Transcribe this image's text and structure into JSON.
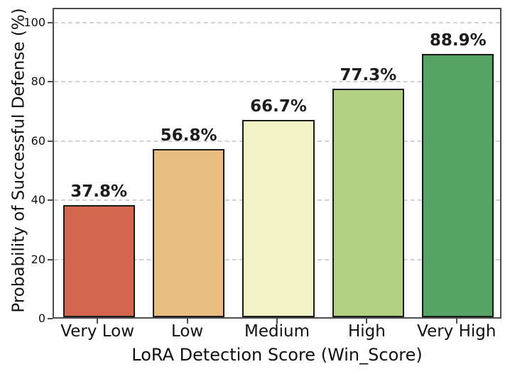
{
  "figure": {
    "background": "#ffffff",
    "spine_color": "#4d4d4d",
    "gridline_color": "#d2d2d2",
    "text_color": "#111111"
  },
  "chart_data": {
    "type": "bar",
    "title": "",
    "categories": [
      "Very Low",
      "Low",
      "Medium",
      "High",
      "Very High"
    ],
    "values": [
      37.8,
      56.8,
      66.7,
      77.3,
      88.9
    ],
    "value_labels": [
      "37.8%",
      "56.8%",
      "66.7%",
      "77.3%",
      "88.9%"
    ],
    "bar_colors": [
      "#d2664e",
      "#e9bd7f",
      "#f2f4c6",
      "#b1d282",
      "#57a365"
    ],
    "bar_edge_color": "#1a1a1a",
    "xlabel": "LoRA Detection Score (Win_Score)",
    "ylabel": "Probability of Successful Defense (%)",
    "ylim": [
      0,
      105
    ],
    "yticks": [
      0,
      20,
      40,
      60,
      80,
      100
    ],
    "grid": "horizontal-dashed",
    "legend": "none"
  }
}
